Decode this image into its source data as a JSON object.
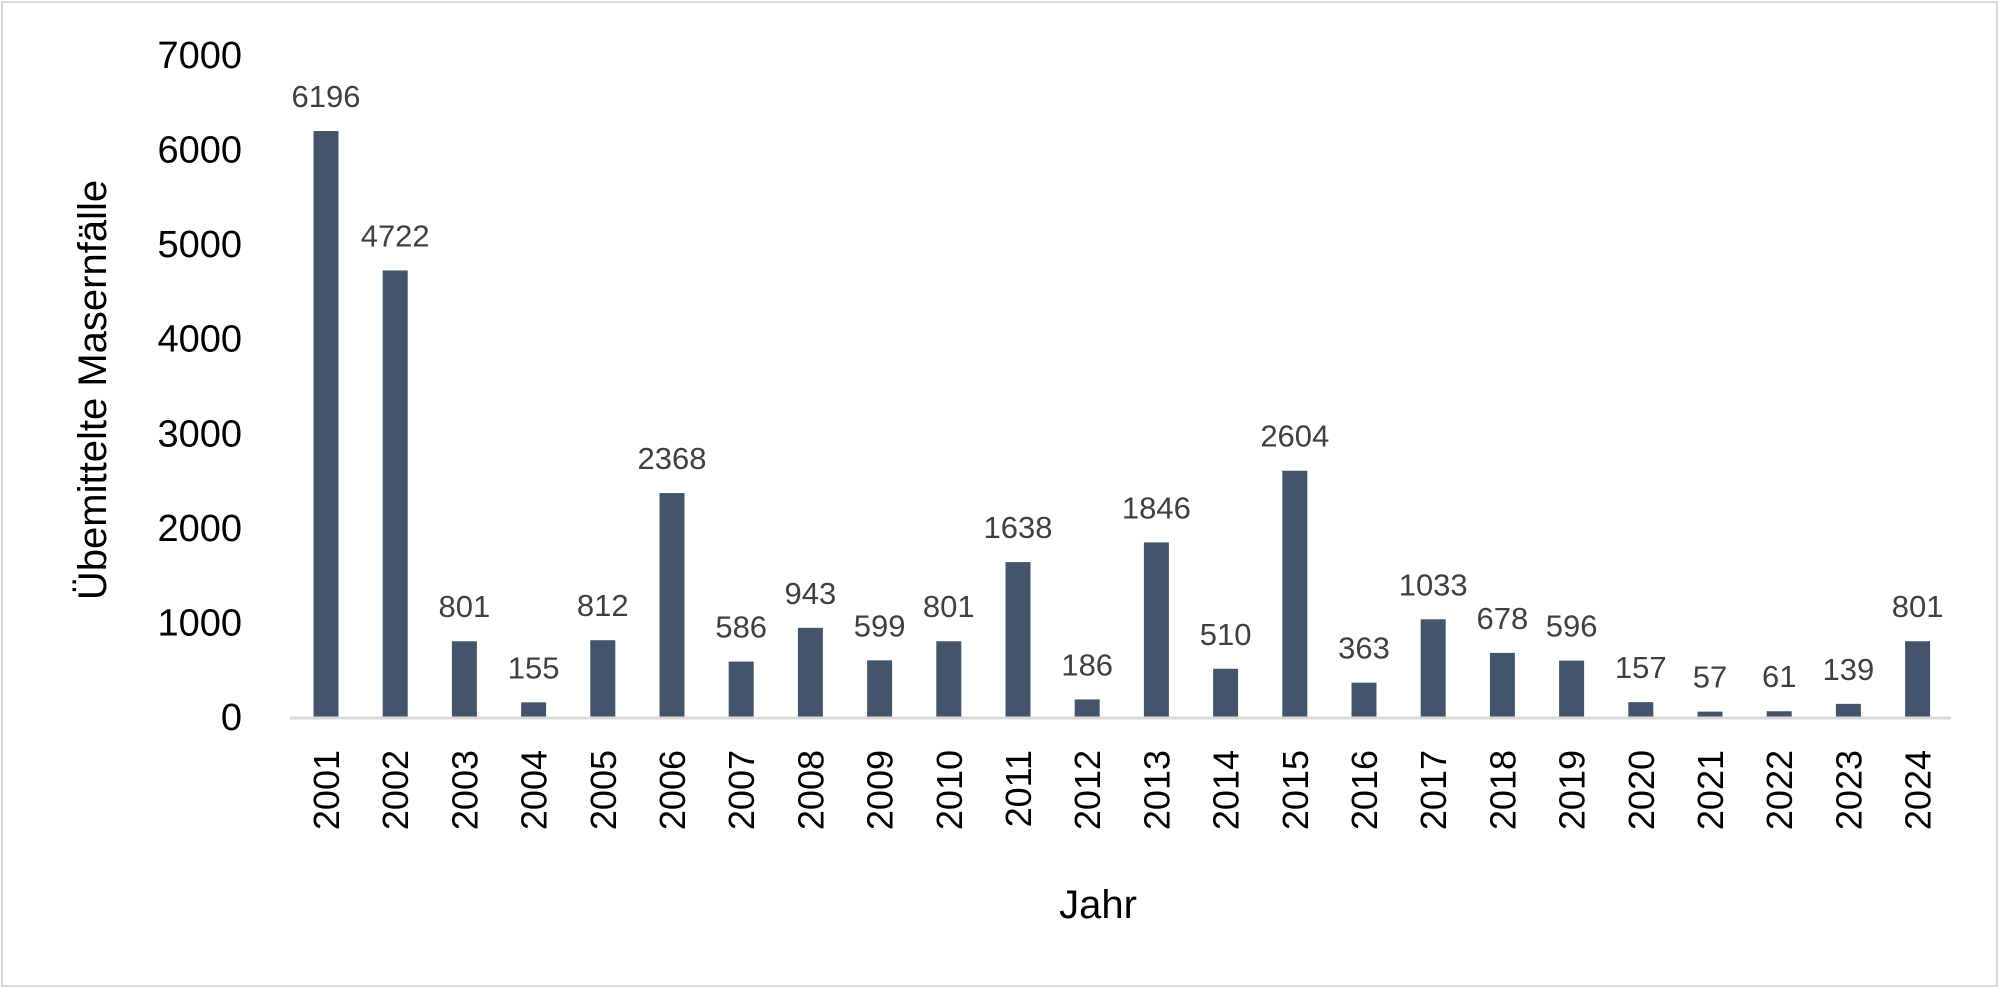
{
  "chart_data": {
    "type": "bar",
    "title": "",
    "xlabel": "Jahr",
    "ylabel": "Übemittelte Masernfälle",
    "ylim": [
      0,
      7000
    ],
    "yticks": [
      0,
      1000,
      2000,
      3000,
      4000,
      5000,
      6000,
      7000
    ],
    "grid": false,
    "bar_color": "#44546a",
    "categories": [
      "2001",
      "2002",
      "2003",
      "2004",
      "2005",
      "2006",
      "2007",
      "2008",
      "2009",
      "2010",
      "2011",
      "2012",
      "2013",
      "2014",
      "2015",
      "2016",
      "2017",
      "2018",
      "2019",
      "2020",
      "2021",
      "2022",
      "2023",
      "2024"
    ],
    "values": [
      6196,
      4722,
      801,
      155,
      812,
      2368,
      586,
      943,
      599,
      801,
      1638,
      186,
      1846,
      510,
      2604,
      363,
      1033,
      678,
      596,
      157,
      57,
      61,
      139,
      801
    ]
  }
}
